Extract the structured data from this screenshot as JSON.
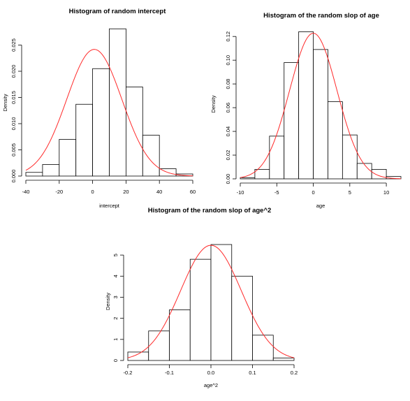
{
  "chart_data": [
    {
      "type": "histogram",
      "title": "Histogram of random intercept",
      "xlabel": "intercept",
      "ylabel": "Density",
      "xlim": [
        -40,
        60
      ],
      "ylim": [
        0,
        0.028
      ],
      "xticks": [
        -40,
        -20,
        0,
        20,
        40,
        60
      ],
      "xtick_labels": [
        "-40",
        "-20",
        "0",
        "20",
        "40",
        "60"
      ],
      "yticks": [
        0,
        0.005,
        0.01,
        0.015,
        0.02,
        0.025
      ],
      "ytick_labels": [
        "0.000",
        "0.005",
        "0.010",
        "0.015",
        "0.020",
        "0.025"
      ],
      "bins": [
        -40,
        -30,
        -20,
        -10,
        0,
        10,
        20,
        30,
        40,
        50
      ],
      "values": [
        0.0007,
        0.0022,
        0.007,
        0.0137,
        0.0205,
        0.0281,
        0.017,
        0.0078,
        0.0014,
        0.0004
      ],
      "curve": {
        "type": "normal_density",
        "color": "#ff2a2a",
        "mean": 1,
        "sd": 16.5,
        "x_range": [
          -40,
          60
        ]
      },
      "bar_color": "#ffffff",
      "edge_color": "#000000"
    },
    {
      "type": "histogram",
      "title": "Histogram of the random slop of age",
      "xlabel": "age",
      "ylabel": "Density",
      "xlim": [
        -10,
        12
      ],
      "ylim": [
        0,
        0.126
      ],
      "xticks": [
        -10,
        -5,
        0,
        5,
        10
      ],
      "xtick_labels": [
        "-10",
        "-5",
        "0",
        "5",
        "10"
      ],
      "yticks": [
        0,
        0.02,
        0.04,
        0.06,
        0.08,
        0.1,
        0.12
      ],
      "ytick_labels": [
        "0.00",
        "0.02",
        "0.04",
        "0.06",
        "0.08",
        "0.10",
        "0.12"
      ],
      "bins": [
        -10,
        -8,
        -6,
        -4,
        -2,
        0,
        2,
        4,
        6,
        8,
        10
      ],
      "values": [
        0.001,
        0.008,
        0.036,
        0.098,
        0.124,
        0.109,
        0.065,
        0.037,
        0.013,
        0.008,
        0.002
      ],
      "curve": {
        "type": "normal_density",
        "color": "#ff2a2a",
        "mean": 0,
        "sd": 3.25,
        "x_range": [
          -10,
          12
        ]
      },
      "bar_color": "#ffffff",
      "edge_color": "#000000"
    },
    {
      "type": "histogram",
      "title": "Histogram of the random slop of age^2",
      "xlabel": "age^2",
      "ylabel": "Density",
      "xlim": [
        -0.2,
        0.2
      ],
      "ylim": [
        0,
        5.6
      ],
      "xticks": [
        -0.2,
        -0.1,
        0,
        0.1,
        0.2
      ],
      "xtick_labels": [
        "-0.2",
        "-0.1",
        "0.0",
        "0.1",
        "0.2"
      ],
      "yticks": [
        0,
        1,
        2,
        3,
        4,
        5
      ],
      "ytick_labels": [
        "0",
        "1",
        "2",
        "3",
        "4",
        "5"
      ],
      "bins": [
        -0.2,
        -0.15,
        -0.1,
        -0.05,
        0,
        0.05,
        0.1,
        0.15
      ],
      "values": [
        0.4,
        1.4,
        2.4,
        4.8,
        5.5,
        4.0,
        1.2,
        0.12
      ],
      "curve": {
        "type": "normal_density",
        "color": "#ff2a2a",
        "mean": 0,
        "sd": 0.073,
        "x_range": [
          -0.2,
          0.2
        ]
      },
      "bar_color": "#ffffff",
      "edge_color": "#000000"
    }
  ]
}
